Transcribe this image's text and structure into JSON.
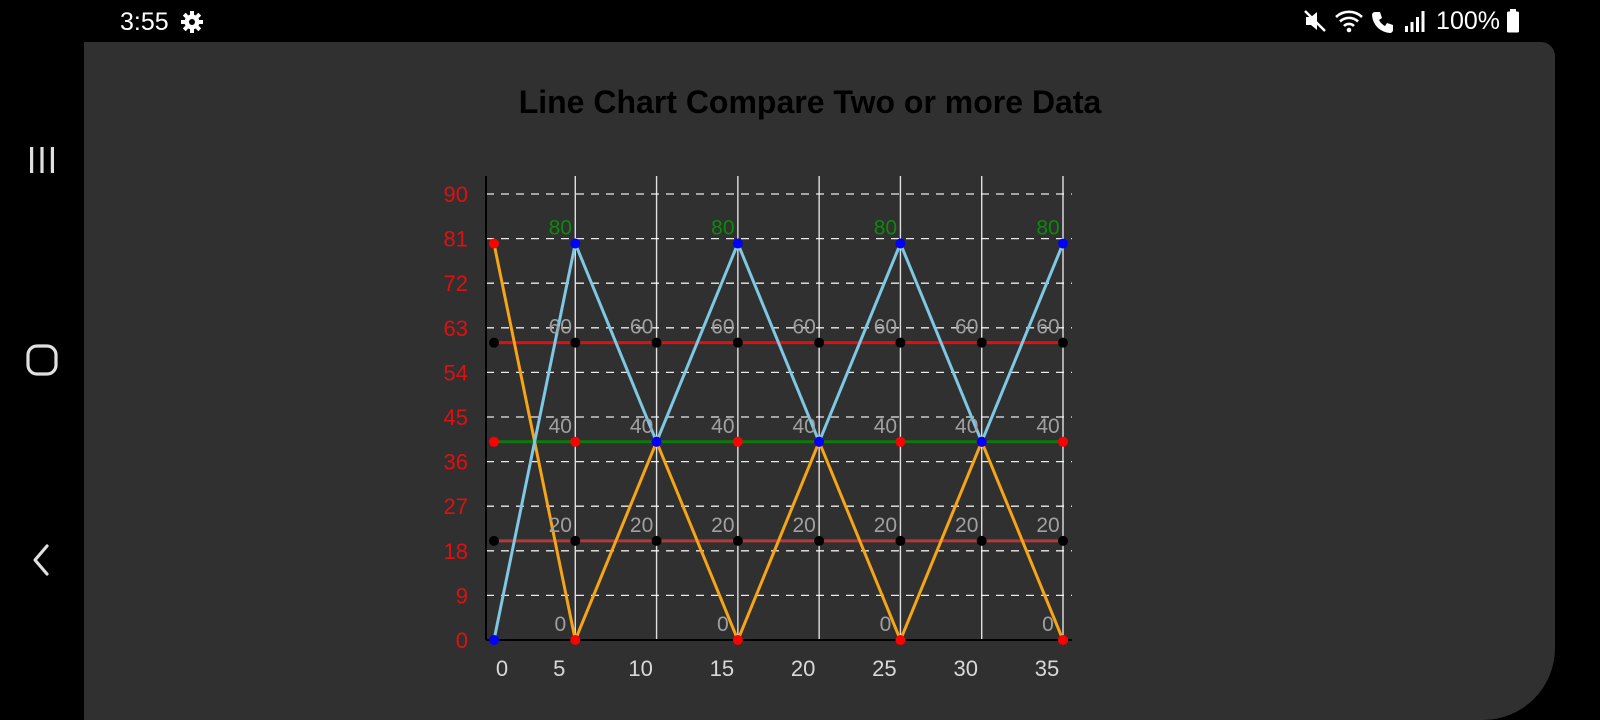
{
  "status_bar": {
    "time": "3:55",
    "battery": "100%"
  },
  "nav": {
    "icons": [
      "recent-apps-icon",
      "home-icon",
      "back-icon"
    ]
  },
  "colors": {
    "background": "#303030",
    "axis": "#000000",
    "y_ticks": "#e01010",
    "x_ticks": "#d8d8d8",
    "grid": "#ffffff"
  },
  "chart_data": {
    "type": "line",
    "title": "Line Chart Compare Two or more Data",
    "xlabel": "",
    "ylabel": "",
    "x_ticks": [
      "0",
      "5",
      "10",
      "15",
      "20",
      "25",
      "30",
      "35"
    ],
    "y_ticks": [
      "0",
      "9",
      "18",
      "27",
      "36",
      "45",
      "54",
      "63",
      "72",
      "81",
      "90"
    ],
    "ylim": [
      0,
      90
    ],
    "x": [
      0,
      5,
      10,
      15,
      20,
      25,
      30,
      35
    ],
    "grid": {
      "horizontal": "dashed",
      "vertical": "solid"
    },
    "series": [
      {
        "values": [
          60,
          60,
          60,
          60,
          60,
          60,
          60,
          60
        ],
        "color": "#e01010",
        "point_color": "#000000",
        "labels": [
          "",
          "60",
          "60",
          "60",
          "60",
          "60",
          "60",
          "60"
        ],
        "label_color": "#a0a0a0"
      },
      {
        "values": [
          20,
          20,
          20,
          20,
          20,
          20,
          20,
          20
        ],
        "color": "#b03a3a",
        "point_color": "#000000",
        "labels": [
          "",
          "20",
          "20",
          "20",
          "20",
          "20",
          "20",
          "20"
        ],
        "label_color": "#a0a0a0"
      },
      {
        "values": [
          40,
          40,
          40,
          40,
          40,
          40,
          40,
          40
        ],
        "color": "#0a7a0a",
        "point_color": "#ff0000",
        "labels": [
          "",
          "40",
          "40",
          "40",
          "40",
          "40",
          "40",
          "40"
        ],
        "label_color": "#a0a0a0"
      },
      {
        "values": [
          80,
          0,
          40,
          0,
          40,
          0,
          40,
          0
        ],
        "color": "#f5a516",
        "point_color": "#ff0000",
        "labels": [
          "",
          "0",
          "",
          "0",
          "",
          "0",
          "",
          "0"
        ],
        "label_color": "#a0a0a0"
      },
      {
        "values": [
          0,
          80,
          40,
          80,
          40,
          80,
          40,
          80
        ],
        "color": "#7ec8e3",
        "point_color": "#0000ff",
        "labels": [
          "",
          "80",
          "",
          "80",
          "",
          "80",
          "",
          "80"
        ],
        "label_color": "#0a8a0a"
      }
    ]
  }
}
